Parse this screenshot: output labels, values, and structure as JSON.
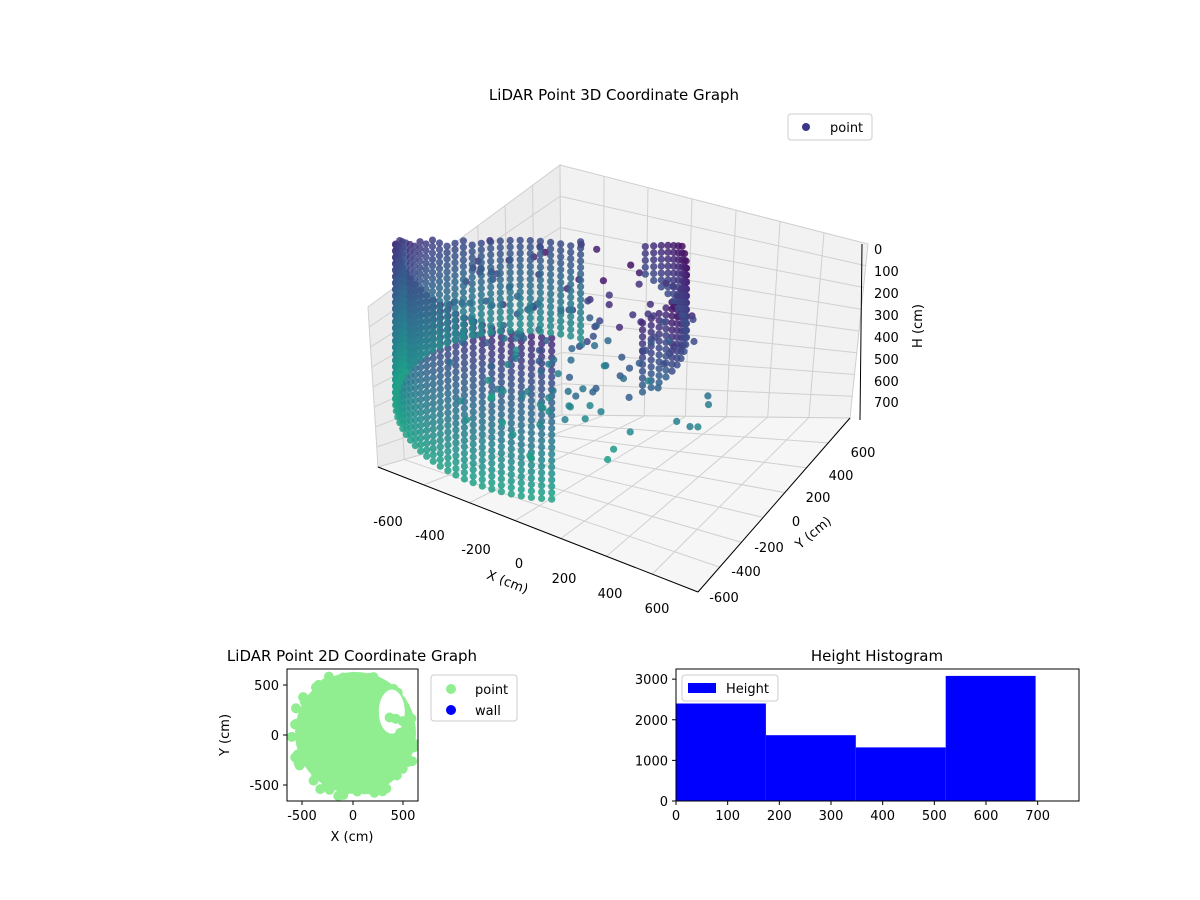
{
  "chart_data": [
    {
      "type": "scatter3d",
      "title": "LiDAR Point 3D Coordinate Graph",
      "xlabel": "X (cm)",
      "ylabel": "Y (cm)",
      "zlabel": "H (cm)",
      "xlim": [
        -700,
        700
      ],
      "ylim": [
        -700,
        700
      ],
      "zlim": [
        0,
        760
      ],
      "z_inverted": true,
      "x_ticks": [
        "-600",
        "-400",
        "-200",
        "0",
        "200",
        "400",
        "600"
      ],
      "y_ticks": [
        "-600",
        "-400",
        "-200",
        "0",
        "200",
        "400",
        "600"
      ],
      "z_ticks": [
        "0",
        "100",
        "200",
        "300",
        "400",
        "500",
        "600",
        "700"
      ],
      "colormap": "viridis",
      "legend": {
        "placement": "upper-right",
        "entries": [
          {
            "label": "point",
            "color": "#3b3685"
          }
        ]
      },
      "series": [
        {
          "name": "point",
          "description_points": [
            {
              "x": -500,
              "y": 0,
              "z": 300
            },
            {
              "x": -450,
              "y": 250,
              "z": 300
            },
            {
              "x": -300,
              "y": 450,
              "z": 300
            },
            {
              "x": -100,
              "y": 550,
              "z": 300
            },
            {
              "x": 100,
              "y": 550,
              "z": 300
            },
            {
              "x": 300,
              "y": 450,
              "z": 300
            },
            {
              "x": 450,
              "y": 250,
              "z": 300
            },
            {
              "x": 500,
              "y": 0,
              "z": 300
            }
          ]
        }
      ],
      "grid": true
    },
    {
      "type": "scatter",
      "title": "LiDAR Point 2D Coordinate Graph",
      "xlabel": "X (cm)",
      "ylabel": "Y (cm)",
      "xlim": [
        -650,
        650
      ],
      "ylim": [
        -650,
        650
      ],
      "x_ticks": [
        "-500",
        "0",
        "500"
      ],
      "y_ticks": [
        "-500",
        "0",
        "500"
      ],
      "legend": {
        "placement": "outside-right",
        "entries": [
          {
            "label": "point",
            "color": "#90ee90"
          },
          {
            "label": "wall",
            "color": "#0000ff"
          }
        ]
      },
      "series": [
        {
          "name": "point",
          "color": "#90ee90",
          "region": "filled disc centred near (0, 0) with radius about 600"
        }
      ]
    },
    {
      "type": "bar",
      "title": "Height Histogram",
      "xlabel": "",
      "ylabel": "",
      "xlim": [
        0,
        780
      ],
      "ylim": [
        0,
        3250
      ],
      "x_ticks": [
        0,
        100,
        200,
        300,
        400,
        500,
        600,
        700
      ],
      "y_ticks": [
        0,
        1000,
        2000,
        3000
      ],
      "legend": {
        "placement": "upper-left",
        "entries": [
          {
            "label": "Height",
            "color": "#0000ff"
          }
        ]
      },
      "bins": [
        {
          "start": 0,
          "end": 174,
          "count": 2400
        },
        {
          "start": 174,
          "end": 348,
          "count": 1620
        },
        {
          "start": 348,
          "end": 522,
          "count": 1320
        },
        {
          "start": 522,
          "end": 696,
          "count": 3080
        }
      ],
      "color": "#0000ff"
    }
  ]
}
